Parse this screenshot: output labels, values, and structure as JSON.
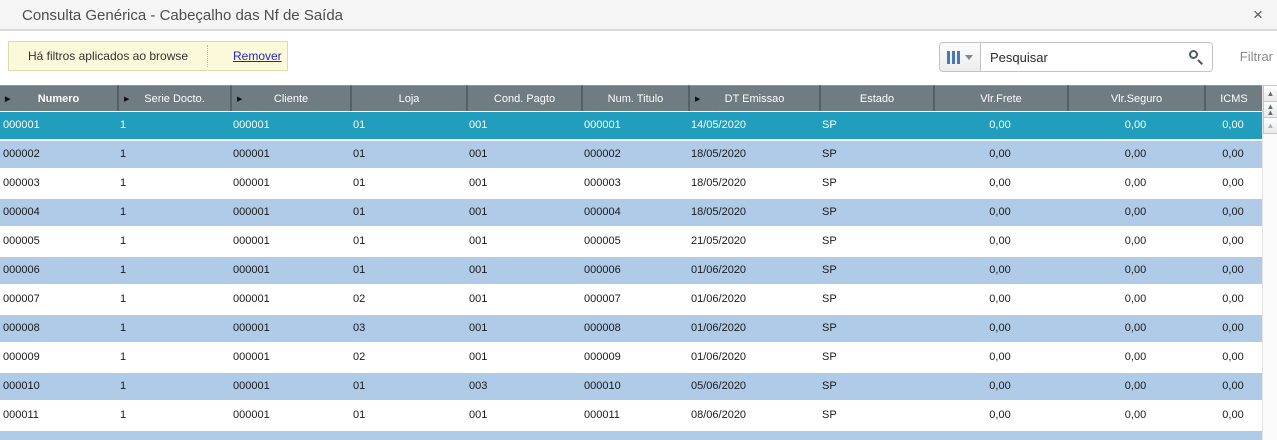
{
  "window": {
    "title": "Consulta Genérica - Cabeçalho das Nf de Saída"
  },
  "icons": {
    "close": "×",
    "sort": "▶",
    "arrow_up": "▲"
  },
  "filter_banner": {
    "message": "Há filtros aplicados ao browse",
    "remove_link": "Remover"
  },
  "search": {
    "placeholder": "Pesquisar",
    "value": "",
    "filter_label": "Filtrar"
  },
  "table": {
    "columns": [
      {
        "label": "Numero",
        "sorted": true,
        "bold": true
      },
      {
        "label": "Serie Docto.",
        "sorted": true
      },
      {
        "label": "Cliente",
        "sorted": true
      },
      {
        "label": "Loja"
      },
      {
        "label": "Cond. Pagto"
      },
      {
        "label": "Num. Titulo"
      },
      {
        "label": "DT Emissao",
        "sorted": true
      },
      {
        "label": "Estado"
      },
      {
        "label": "Vlr.Frete",
        "numeric": true
      },
      {
        "label": "Vlr.Seguro",
        "numeric": true
      },
      {
        "label": "ICMS",
        "numeric": true
      }
    ],
    "selected_row_index": 0,
    "rows": [
      [
        "000001",
        "1",
        "000001",
        "01",
        "001",
        "000001",
        "14/05/2020",
        "SP",
        "0,00",
        "0,00",
        "0,00"
      ],
      [
        "000002",
        "1",
        "000001",
        "01",
        "001",
        "000002",
        "18/05/2020",
        "SP",
        "0,00",
        "0,00",
        "0,00"
      ],
      [
        "000003",
        "1",
        "000001",
        "01",
        "001",
        "000003",
        "18/05/2020",
        "SP",
        "0,00",
        "0,00",
        "0,00"
      ],
      [
        "000004",
        "1",
        "000001",
        "01",
        "001",
        "000004",
        "18/05/2020",
        "SP",
        "0,00",
        "0,00",
        "0,00"
      ],
      [
        "000005",
        "1",
        "000001",
        "01",
        "001",
        "000005",
        "21/05/2020",
        "SP",
        "0,00",
        "0,00",
        "0,00"
      ],
      [
        "000006",
        "1",
        "000001",
        "01",
        "001",
        "000006",
        "01/06/2020",
        "SP",
        "0,00",
        "0,00",
        "0,00"
      ],
      [
        "000007",
        "1",
        "000001",
        "02",
        "001",
        "000007",
        "01/06/2020",
        "SP",
        "0,00",
        "0,00",
        "0,00"
      ],
      [
        "000008",
        "1",
        "000001",
        "03",
        "001",
        "000008",
        "01/06/2020",
        "SP",
        "0,00",
        "0,00",
        "0,00"
      ],
      [
        "000009",
        "1",
        "000001",
        "02",
        "001",
        "000009",
        "01/06/2020",
        "SP",
        "0,00",
        "0,00",
        "0,00"
      ],
      [
        "000010",
        "1",
        "000001",
        "01",
        "003",
        "000010",
        "05/06/2020",
        "SP",
        "0,00",
        "0,00",
        "0,00"
      ],
      [
        "000011",
        "1",
        "000001",
        "01",
        "001",
        "000011",
        "08/06/2020",
        "SP",
        "0,00",
        "0,00",
        "0,00"
      ],
      [
        "",
        "",
        "",
        "",
        "",
        "",
        "",
        "",
        "",
        "",
        ""
      ]
    ]
  },
  "colors": {
    "sel": "#219EBD",
    "alt": "#AFCBE7",
    "header-bg": "#6F7C81",
    "header-sep": "#565F63",
    "banner-bg": "#FBF9DA",
    "banner-border": "#DDDAAC",
    "link": "#2323CC",
    "bars": "#4A78BE"
  }
}
